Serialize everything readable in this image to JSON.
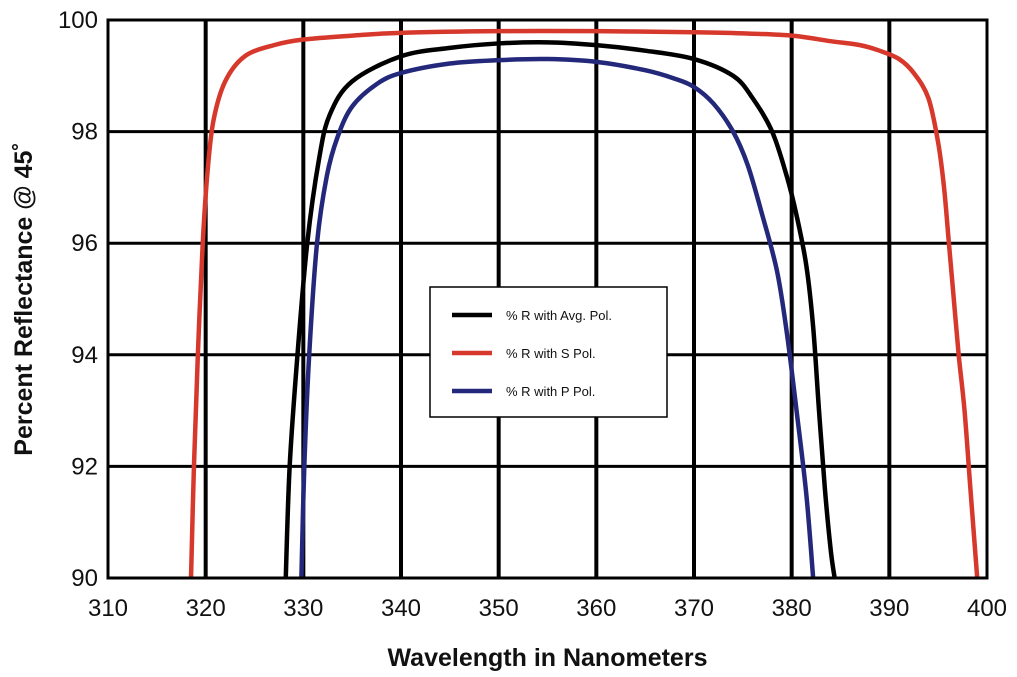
{
  "chart_data": {
    "type": "line",
    "title": "",
    "xlabel": "Wavelength in Nanometers",
    "ylabel": "Percent Reflectance @ 45˚",
    "xlim": [
      310,
      400
    ],
    "ylim": [
      90,
      100
    ],
    "x_ticks": [
      310,
      320,
      330,
      340,
      350,
      360,
      370,
      380,
      390,
      400
    ],
    "y_ticks": [
      90,
      92,
      94,
      96,
      98,
      100
    ],
    "x_tick_labels": [
      "310",
      "320",
      "330",
      "340",
      "350",
      "360",
      "370",
      "380",
      "390",
      "400"
    ],
    "y_tick_labels": [
      "90",
      "92",
      "94",
      "96",
      "98",
      "100"
    ],
    "grid": true,
    "legend_position": "center",
    "series": [
      {
        "name": "% R with Avg. Pol.",
        "color": "#000000",
        "points": [
          [
            328.2,
            90
          ],
          [
            328.6,
            92
          ],
          [
            329.4,
            94
          ],
          [
            330.4,
            96
          ],
          [
            331.6,
            97.5
          ],
          [
            332.7,
            98.3
          ],
          [
            335,
            98.9
          ],
          [
            340,
            99.35
          ],
          [
            345,
            99.5
          ],
          [
            350,
            99.58
          ],
          [
            355,
            99.6
          ],
          [
            360,
            99.55
          ],
          [
            365,
            99.45
          ],
          [
            370,
            99.3
          ],
          [
            374,
            99.0
          ],
          [
            376,
            98.6
          ],
          [
            378,
            98.0
          ],
          [
            379.5,
            97.2
          ],
          [
            380.5,
            96.5
          ],
          [
            381.5,
            95.6
          ],
          [
            382.2,
            94.5
          ],
          [
            382.8,
            93.0
          ],
          [
            383.4,
            91.6
          ],
          [
            384.0,
            90.5
          ],
          [
            384.4,
            90
          ]
        ]
      },
      {
        "name": "% R with S Pol.",
        "color": "#D7382C",
        "points": [
          [
            318.5,
            90
          ],
          [
            318.8,
            92
          ],
          [
            319.2,
            94
          ],
          [
            319.7,
            96
          ],
          [
            320.2,
            97.3
          ],
          [
            320.8,
            98.2
          ],
          [
            322,
            98.9
          ],
          [
            324,
            99.35
          ],
          [
            327,
            99.55
          ],
          [
            330,
            99.65
          ],
          [
            335,
            99.72
          ],
          [
            340,
            99.77
          ],
          [
            350,
            99.8
          ],
          [
            360,
            99.8
          ],
          [
            370,
            99.78
          ],
          [
            375,
            99.76
          ],
          [
            380,
            99.72
          ],
          [
            384,
            99.62
          ],
          [
            387,
            99.55
          ],
          [
            389,
            99.45
          ],
          [
            391,
            99.3
          ],
          [
            392.5,
            99.05
          ],
          [
            394,
            98.6
          ],
          [
            395,
            97.8
          ],
          [
            395.6,
            97.0
          ],
          [
            396.1,
            96.0
          ],
          [
            396.6,
            95.0
          ],
          [
            397.1,
            94.0
          ],
          [
            397.7,
            93.0
          ],
          [
            398.3,
            91.6
          ],
          [
            399.0,
            90
          ]
        ]
      },
      {
        "name": "% R with P Pol.",
        "color": "#24287A",
        "points": [
          [
            329.8,
            90
          ],
          [
            330.1,
            92
          ],
          [
            330.6,
            94
          ],
          [
            331.4,
            96
          ],
          [
            332.4,
            97.2
          ],
          [
            333.5,
            97.9
          ],
          [
            335,
            98.45
          ],
          [
            337.5,
            98.85
          ],
          [
            340,
            99.05
          ],
          [
            345,
            99.22
          ],
          [
            350,
            99.28
          ],
          [
            355,
            99.3
          ],
          [
            360,
            99.25
          ],
          [
            365,
            99.1
          ],
          [
            368,
            98.95
          ],
          [
            370,
            98.8
          ],
          [
            372,
            98.5
          ],
          [
            374,
            98.0
          ],
          [
            375.5,
            97.4
          ],
          [
            377,
            96.5
          ],
          [
            378.5,
            95.5
          ],
          [
            379.5,
            94.4
          ],
          [
            380.5,
            93.0
          ],
          [
            381.5,
            91.5
          ],
          [
            382.2,
            90
          ]
        ]
      }
    ]
  }
}
